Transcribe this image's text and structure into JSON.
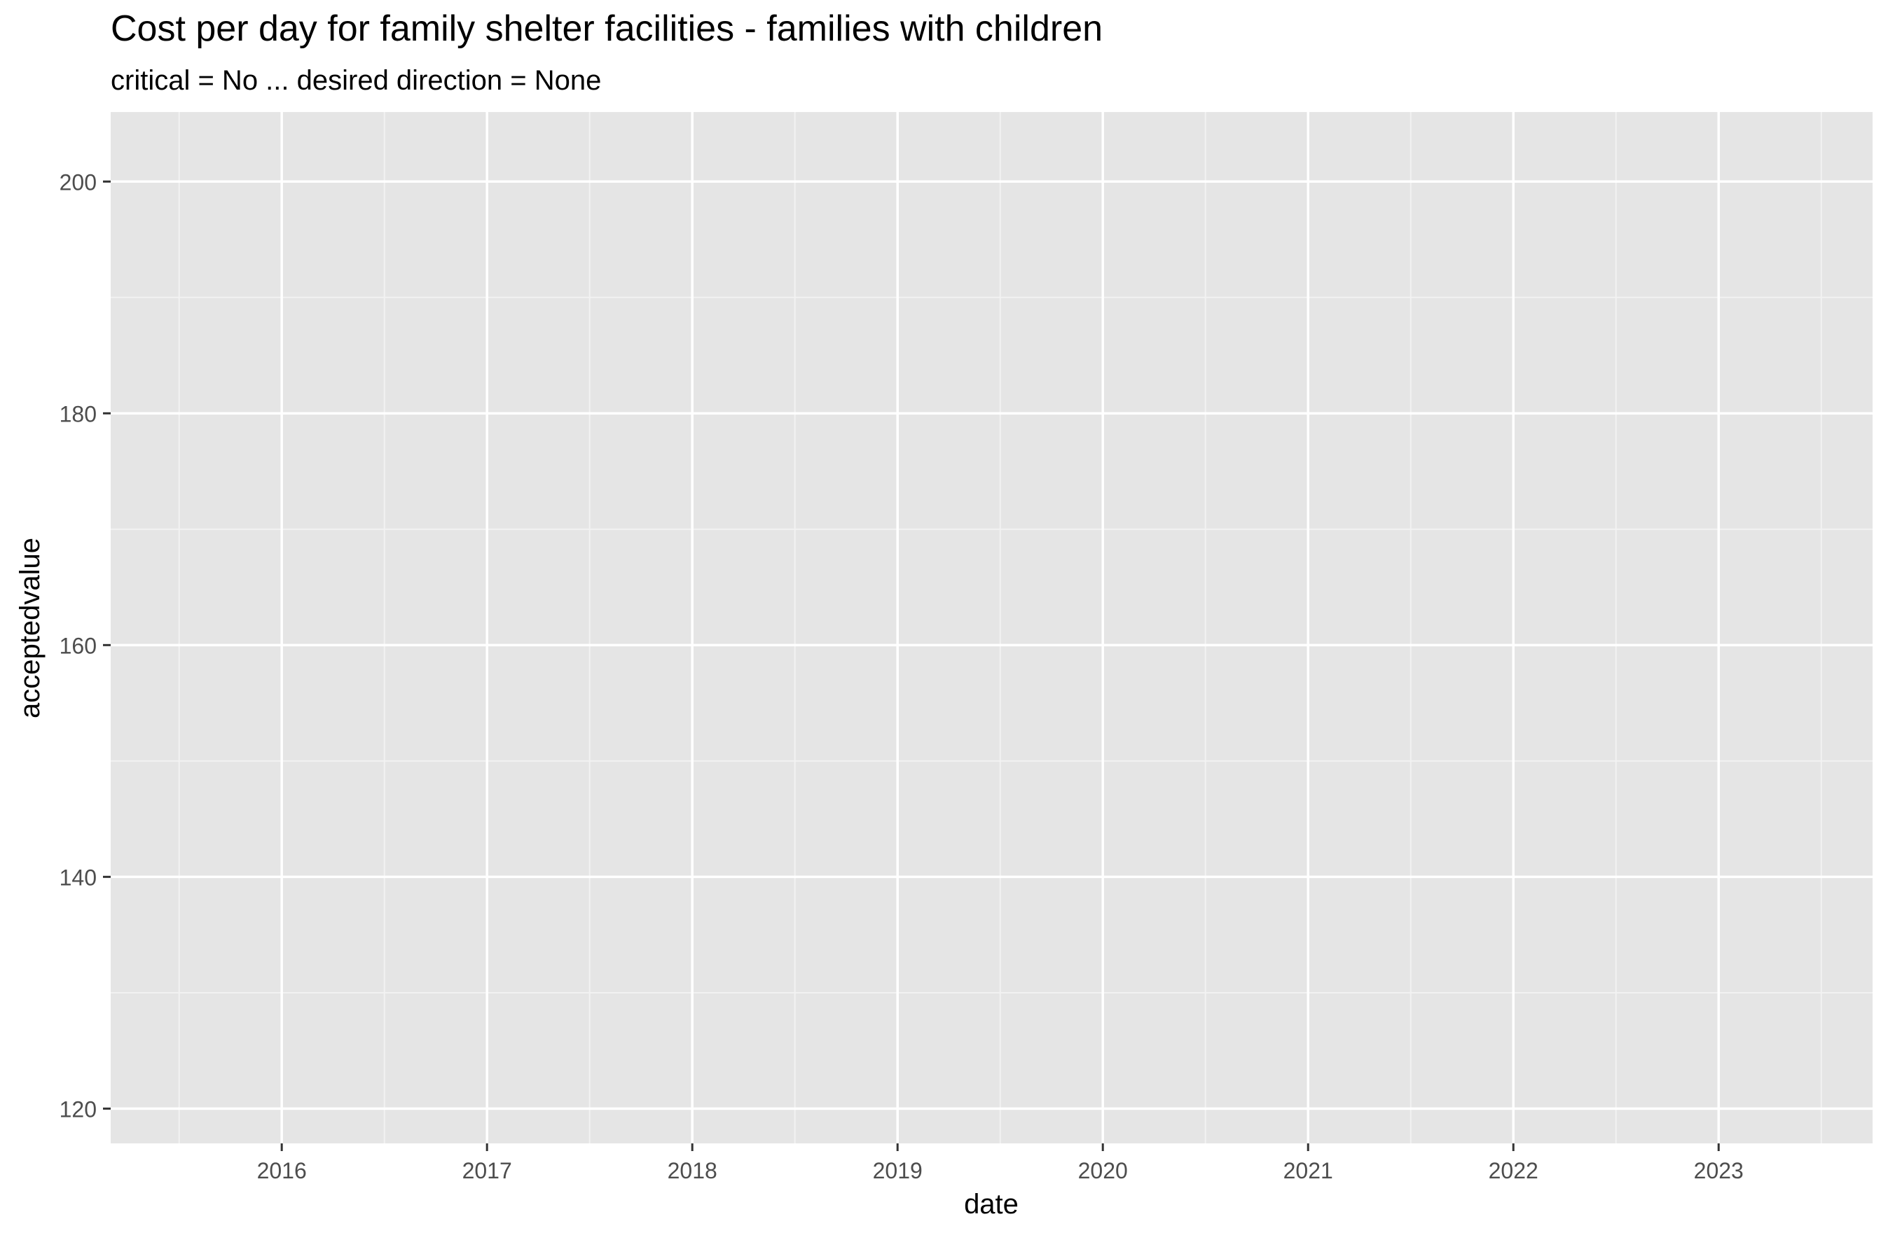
{
  "chart_data": {
    "type": "line",
    "title": "Cost per day for family shelter facilities - families with children",
    "subtitle": "critical = No ... desired direction = None",
    "xlabel": "date",
    "ylabel": "acceptedvalue",
    "x_ticks": [
      "2016",
      "2017",
      "2018",
      "2019",
      "2020",
      "2021",
      "2022",
      "2023"
    ],
    "y_ticks": [
      120,
      140,
      160,
      180,
      200
    ],
    "xlim": [
      "2015-03",
      "2023-10"
    ],
    "ylim": [
      117,
      206
    ],
    "series": [],
    "grid": true,
    "legend": "none",
    "colors": {
      "panel_background": "#e5e5e5",
      "grid_major": "#ffffff",
      "grid_minor": "#f2f2f2",
      "text": "#000000",
      "tick_text": "#4d4d4d",
      "tick_mark": "#333333"
    }
  }
}
